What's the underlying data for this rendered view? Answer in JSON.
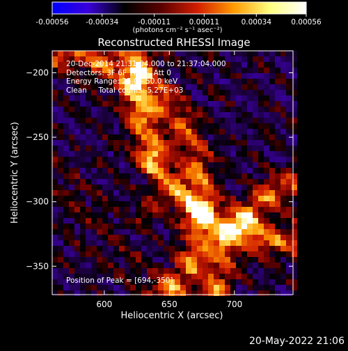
{
  "colorbar": {
    "tick_labels": [
      "-0.00056",
      "-0.00034",
      "-0.00011",
      "0.00011",
      "0.00034",
      "0.00056"
    ],
    "unit": "(photons cm⁻² s⁻¹ asec⁻²)",
    "colormap": [
      "#0000ff",
      "#3a00d8",
      "#000000",
      "#5a0000",
      "#d21e00",
      "#ff9a00",
      "#ffff80",
      "#ffffff"
    ]
  },
  "chart_data": {
    "type": "heatmap",
    "title": "Reconstructed RHESSI Image",
    "xlabel": "Heliocentric X (arcsec)",
    "ylabel": "Heliocentric Y (arcsec)",
    "xlim": [
      560,
      745
    ],
    "ylim": [
      -372,
      -183
    ],
    "xticks": [
      600,
      650,
      700
    ],
    "yticks": [
      -200,
      -250,
      -300,
      -350
    ],
    "value_range": [
      -0.00056,
      0.00056
    ],
    "annotations": {
      "time_range": "20-Dec-2014 21:31:04.000 to 21:37:04.000",
      "detectors": "Detectors: 3F 6F 7F 9F, Att 0",
      "energy": "Energy Range: 25.0 - 50.0 keV",
      "clean": "Clean     Total counts: 5.27E+03",
      "peak": "Position of Peak = [694,-350]"
    }
  },
  "footer_date": "20-May-2022 21:06"
}
